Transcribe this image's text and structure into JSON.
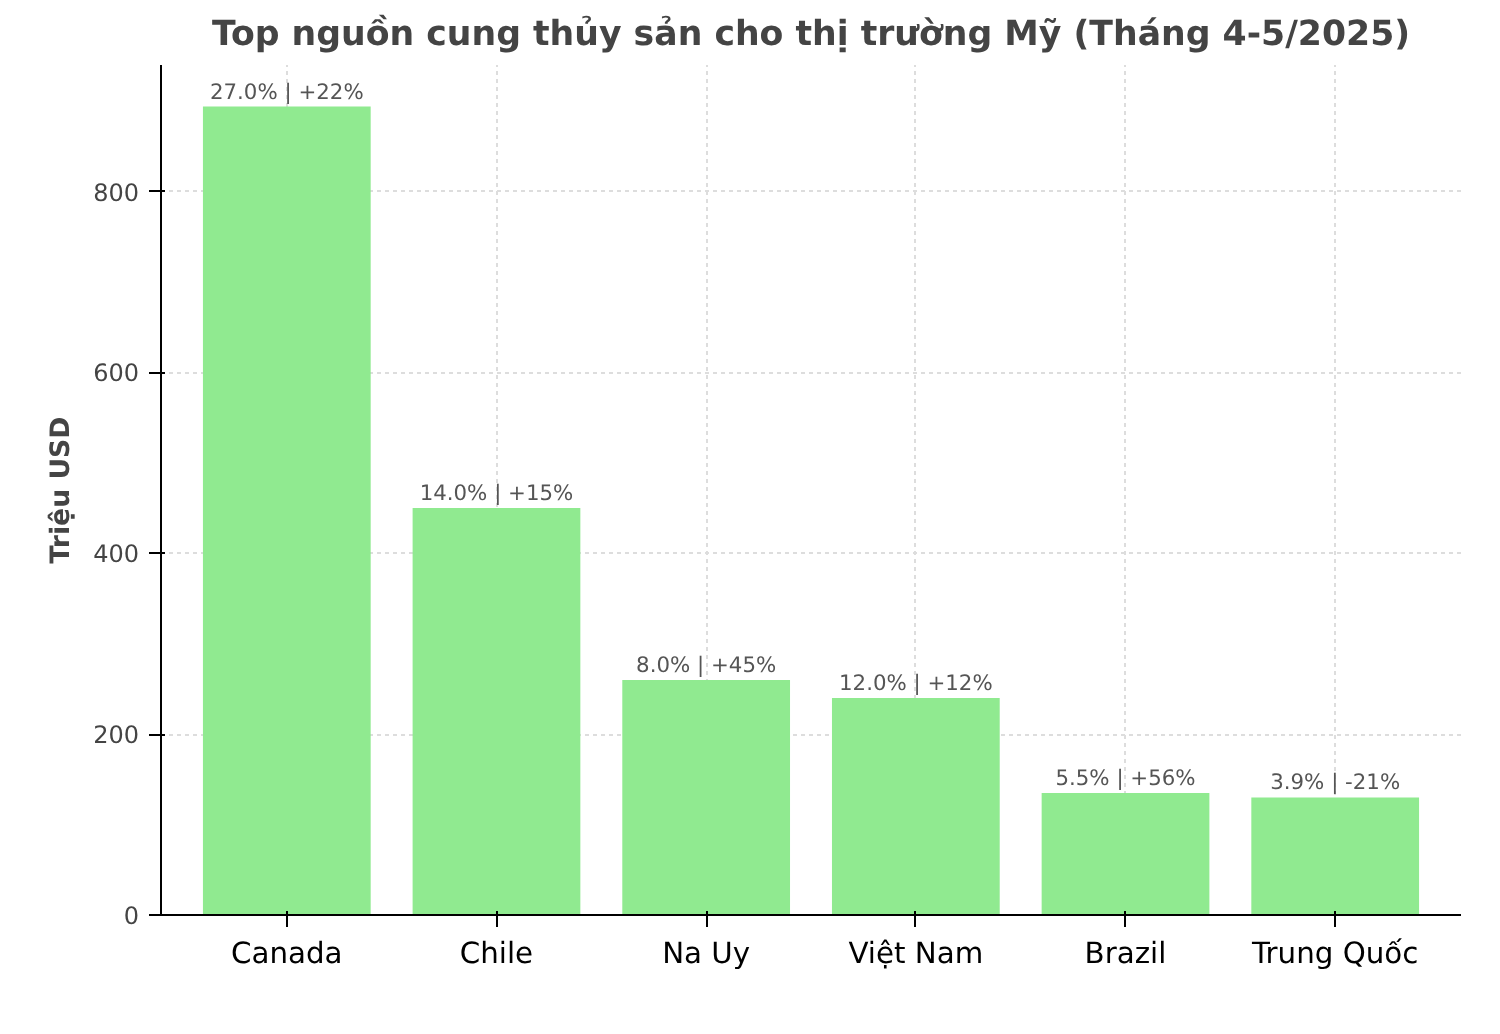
{
  "chart_data": {
    "type": "bar",
    "title": "Top nguồn cung thủy sản cho thị trường Mỹ (Tháng 4-5/2025)",
    "ylabel": "Triệu USD",
    "categories": [
      "Canada",
      "Chile",
      "Na Uy",
      "Việt Nam",
      "Brazil",
      "Trung Quốc"
    ],
    "values": [
      894,
      450,
      260,
      240,
      135,
      130
    ],
    "annotations": [
      {
        "text": "27.0% | +22%",
        "x": "Canada",
        "y": 894
      },
      {
        "text": "14.0% | +15%",
        "x": "Chile",
        "y": 450
      },
      {
        "text": "8.0% | +45%",
        "x": "Na Uy",
        "y": 260
      },
      {
        "text": "12.0% | +12%",
        "x": "Việt Nam",
        "y": 240
      },
      {
        "text": "5.5% | +56%",
        "x": "Brazil",
        "y": 135
      },
      {
        "text": "3.9% | -21%",
        "x": "Trung Quốc",
        "y": 130
      }
    ],
    "color": "#90ea90",
    "ylim": [
      0,
      940
    ],
    "yticks": [
      0,
      200,
      400,
      600,
      800
    ],
    "grid": true
  }
}
